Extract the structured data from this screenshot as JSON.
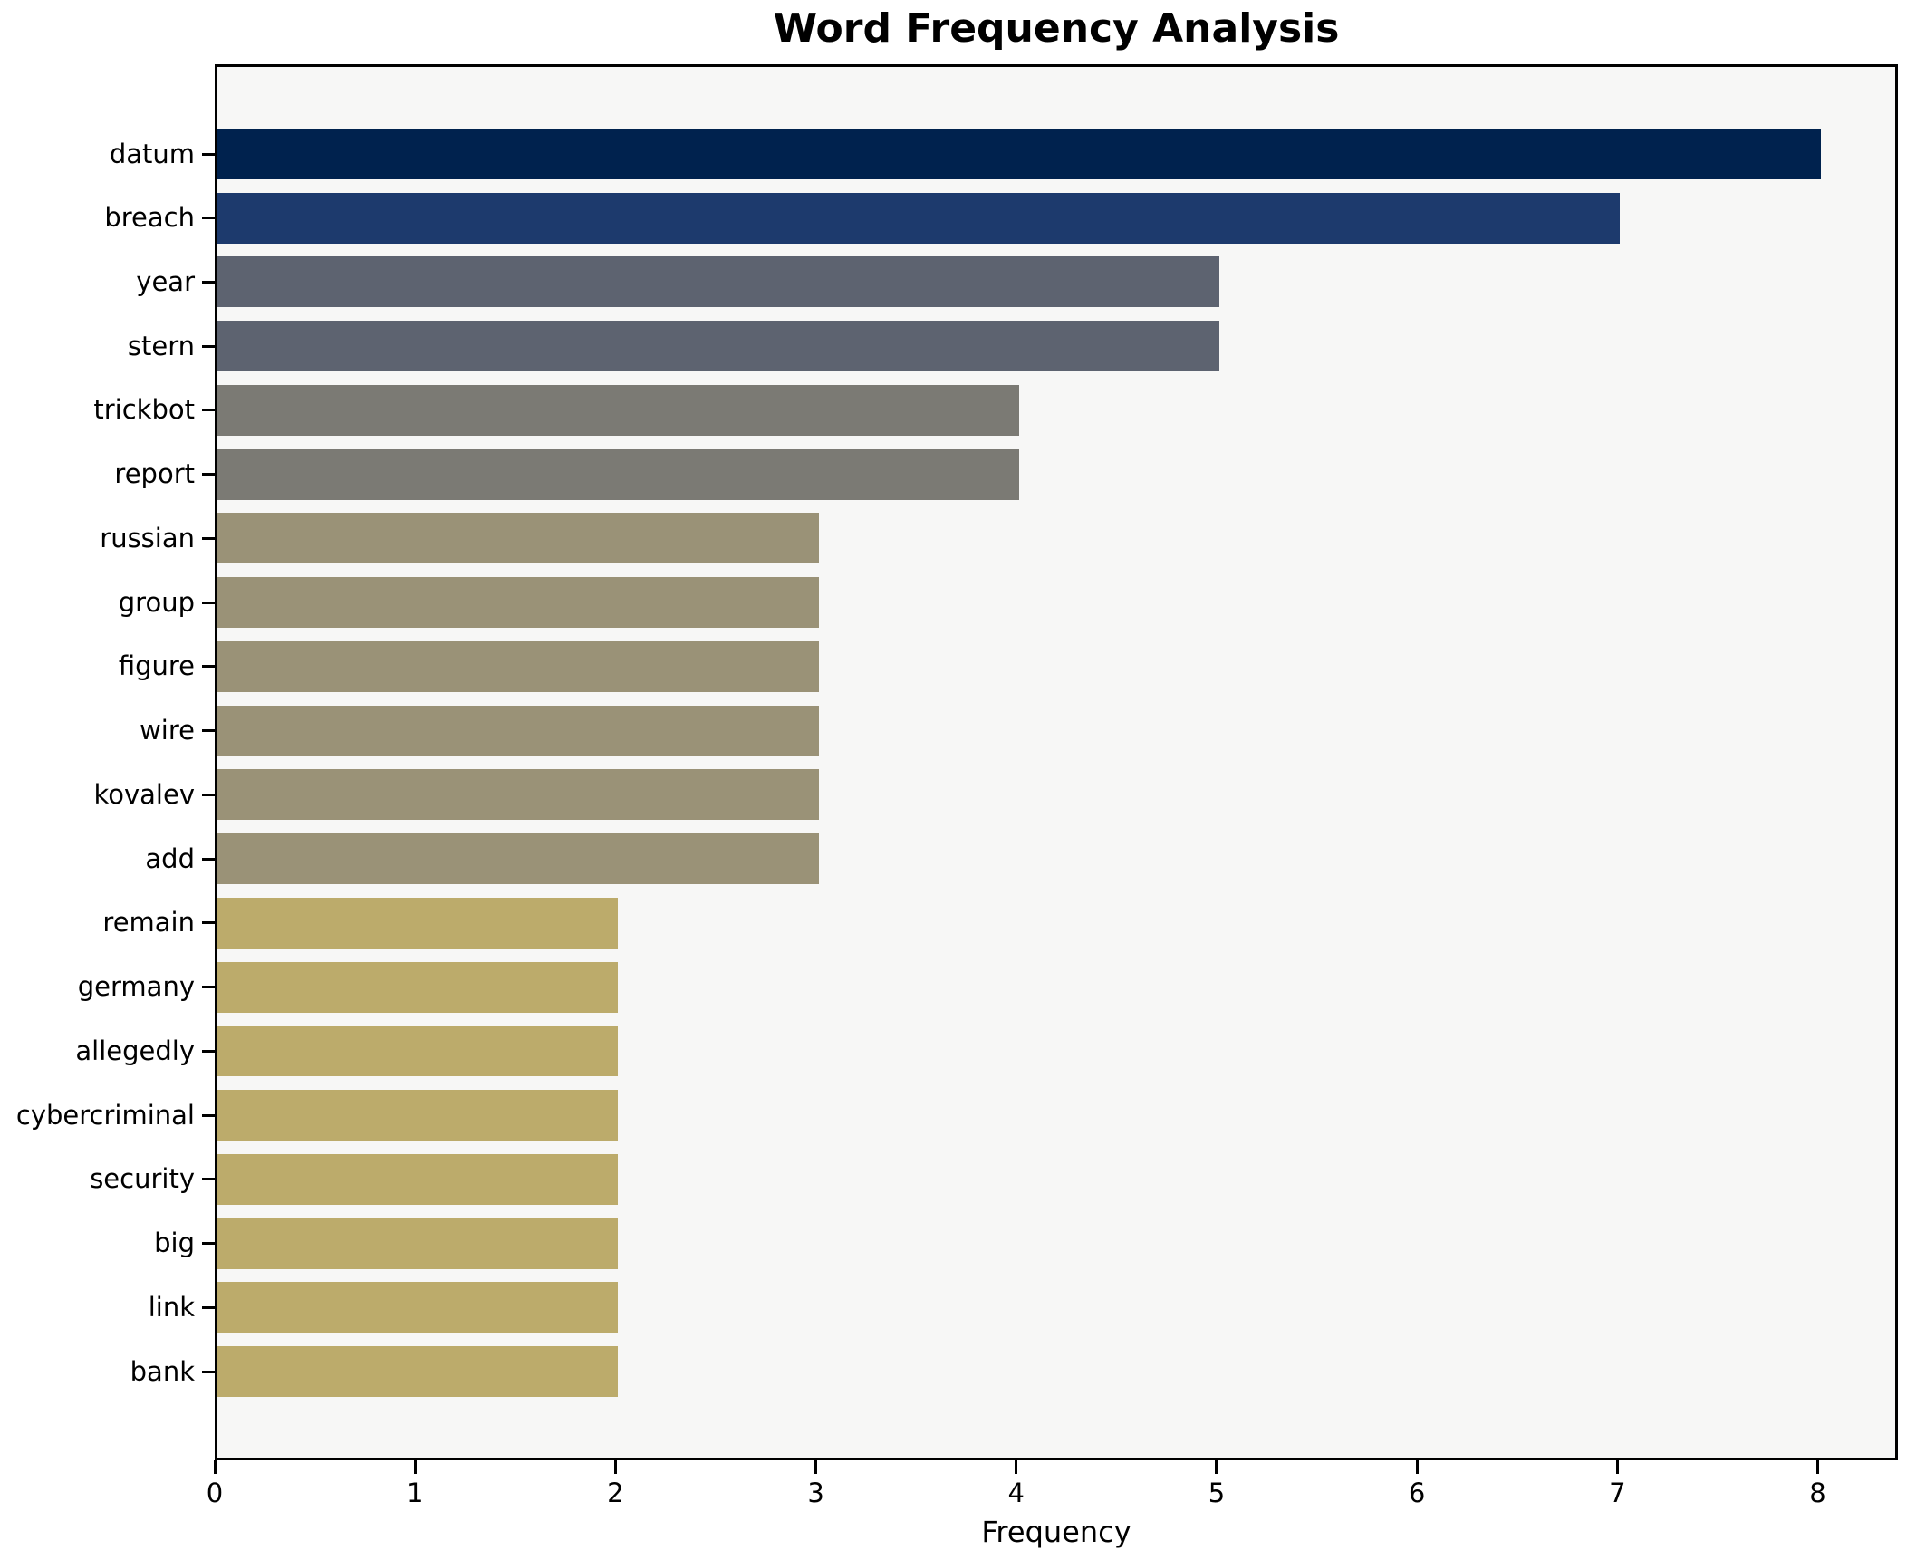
{
  "chart_data": {
    "type": "bar",
    "orientation": "horizontal",
    "title": "Word Frequency Analysis",
    "xlabel": "Frequency",
    "ylabel": "",
    "categories": [
      "datum",
      "breach",
      "year",
      "stern",
      "trickbot",
      "report",
      "russian",
      "group",
      "figure",
      "wire",
      "kovalev",
      "add",
      "remain",
      "germany",
      "allegedly",
      "cybercriminal",
      "security",
      "big",
      "link",
      "bank"
    ],
    "values": [
      8,
      7,
      5,
      5,
      4,
      4,
      3,
      3,
      3,
      3,
      3,
      3,
      2,
      2,
      2,
      2,
      2,
      2,
      2,
      2
    ],
    "bar_colors": [
      "#00224e",
      "#1d3a6d",
      "#5d6370",
      "#5d6370",
      "#7b7a74",
      "#7b7a74",
      "#9a9277",
      "#9a9277",
      "#9a9277",
      "#9a9277",
      "#9a9277",
      "#9a9277",
      "#bcab6b",
      "#bcab6b",
      "#bcab6b",
      "#bcab6b",
      "#bcab6b",
      "#bcab6b",
      "#bcab6b",
      "#bcab6b"
    ],
    "xticks": [
      "0",
      "1",
      "2",
      "3",
      "4",
      "5",
      "6",
      "7",
      "8"
    ],
    "xlim": [
      0,
      8.4
    ],
    "grid": false,
    "legend": null,
    "plot_background": "#f7f7f6",
    "figure_background": "#ffffff",
    "spine_color": "#000000",
    "text_color": "#000000"
  }
}
